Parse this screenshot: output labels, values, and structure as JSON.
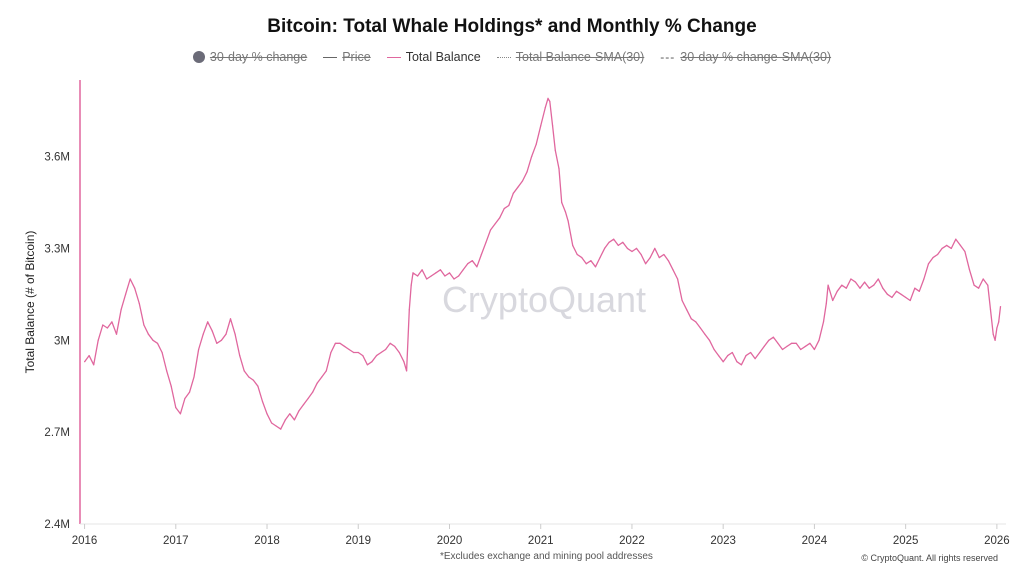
{
  "chart_data": {
    "type": "line",
    "title": "Bitcoin: Total Whale Holdings* and Monthly % Change",
    "ylabel": "Total Balance (# of Bitcoin)",
    "xlabel": "",
    "xlim": [
      2015.95,
      2026.1
    ],
    "ylim": [
      2400000,
      3850000
    ],
    "yticks": [
      {
        "value": 2400000,
        "label": "2.4M"
      },
      {
        "value": 2700000,
        "label": "2.7M"
      },
      {
        "value": 3000000,
        "label": "3M"
      },
      {
        "value": 3300000,
        "label": "3.3M"
      },
      {
        "value": 3600000,
        "label": "3.6M"
      }
    ],
    "xticks": [
      {
        "value": 2016,
        "label": "2016"
      },
      {
        "value": 2017,
        "label": "2017"
      },
      {
        "value": 2018,
        "label": "2018"
      },
      {
        "value": 2019,
        "label": "2019"
      },
      {
        "value": 2020,
        "label": "2020"
      },
      {
        "value": 2021,
        "label": "2021"
      },
      {
        "value": 2022,
        "label": "2022"
      },
      {
        "value": 2023,
        "label": "2023"
      },
      {
        "value": 2024,
        "label": "2024"
      },
      {
        "value": 2025,
        "label": "2025"
      },
      {
        "value": 2026,
        "label": "2026"
      }
    ],
    "legend": [
      {
        "label": "30-day % change",
        "style": "dot",
        "active": false
      },
      {
        "label": "Price",
        "style": "line",
        "active": false
      },
      {
        "label": "Total Balance",
        "style": "line-pink",
        "active": true
      },
      {
        "label": "Total Balance-SMA(30)",
        "style": "dotted",
        "active": false
      },
      {
        "label": "30-day % change-SMA(30)",
        "style": "dashed",
        "active": false
      }
    ],
    "series": [
      {
        "name": "Total Balance",
        "color": "#e0679e",
        "points": [
          [
            2016.0,
            2930000
          ],
          [
            2016.05,
            2950000
          ],
          [
            2016.1,
            2920000
          ],
          [
            2016.15,
            3000000
          ],
          [
            2016.2,
            3050000
          ],
          [
            2016.25,
            3040000
          ],
          [
            2016.3,
            3060000
          ],
          [
            2016.35,
            3020000
          ],
          [
            2016.4,
            3100000
          ],
          [
            2016.45,
            3150000
          ],
          [
            2016.5,
            3200000
          ],
          [
            2016.55,
            3170000
          ],
          [
            2016.6,
            3120000
          ],
          [
            2016.65,
            3050000
          ],
          [
            2016.7,
            3020000
          ],
          [
            2016.75,
            3000000
          ],
          [
            2016.8,
            2990000
          ],
          [
            2016.85,
            2960000
          ],
          [
            2016.9,
            2900000
          ],
          [
            2016.95,
            2850000
          ],
          [
            2017.0,
            2780000
          ],
          [
            2017.05,
            2760000
          ],
          [
            2017.1,
            2810000
          ],
          [
            2017.15,
            2830000
          ],
          [
            2017.2,
            2880000
          ],
          [
            2017.25,
            2970000
          ],
          [
            2017.3,
            3020000
          ],
          [
            2017.35,
            3060000
          ],
          [
            2017.4,
            3030000
          ],
          [
            2017.45,
            2990000
          ],
          [
            2017.5,
            3000000
          ],
          [
            2017.55,
            3020000
          ],
          [
            2017.6,
            3070000
          ],
          [
            2017.65,
            3020000
          ],
          [
            2017.7,
            2950000
          ],
          [
            2017.75,
            2900000
          ],
          [
            2017.8,
            2880000
          ],
          [
            2017.85,
            2870000
          ],
          [
            2017.9,
            2850000
          ],
          [
            2017.95,
            2800000
          ],
          [
            2018.0,
            2760000
          ],
          [
            2018.05,
            2730000
          ],
          [
            2018.1,
            2720000
          ],
          [
            2018.15,
            2710000
          ],
          [
            2018.2,
            2740000
          ],
          [
            2018.25,
            2760000
          ],
          [
            2018.3,
            2740000
          ],
          [
            2018.35,
            2770000
          ],
          [
            2018.4,
            2790000
          ],
          [
            2018.45,
            2810000
          ],
          [
            2018.5,
            2830000
          ],
          [
            2018.55,
            2860000
          ],
          [
            2018.6,
            2880000
          ],
          [
            2018.65,
            2900000
          ],
          [
            2018.7,
            2960000
          ],
          [
            2018.75,
            2990000
          ],
          [
            2018.8,
            2990000
          ],
          [
            2018.85,
            2980000
          ],
          [
            2018.9,
            2970000
          ],
          [
            2018.95,
            2960000
          ],
          [
            2019.0,
            2960000
          ],
          [
            2019.05,
            2950000
          ],
          [
            2019.1,
            2920000
          ],
          [
            2019.15,
            2930000
          ],
          [
            2019.2,
            2950000
          ],
          [
            2019.25,
            2960000
          ],
          [
            2019.3,
            2970000
          ],
          [
            2019.35,
            2990000
          ],
          [
            2019.4,
            2980000
          ],
          [
            2019.45,
            2960000
          ],
          [
            2019.5,
            2930000
          ],
          [
            2019.53,
            2900000
          ],
          [
            2019.56,
            3100000
          ],
          [
            2019.58,
            3180000
          ],
          [
            2019.6,
            3220000
          ],
          [
            2019.65,
            3210000
          ],
          [
            2019.7,
            3230000
          ],
          [
            2019.75,
            3200000
          ],
          [
            2019.8,
            3210000
          ],
          [
            2019.85,
            3220000
          ],
          [
            2019.9,
            3230000
          ],
          [
            2019.95,
            3210000
          ],
          [
            2020.0,
            3220000
          ],
          [
            2020.05,
            3200000
          ],
          [
            2020.1,
            3210000
          ],
          [
            2020.15,
            3230000
          ],
          [
            2020.2,
            3250000
          ],
          [
            2020.25,
            3260000
          ],
          [
            2020.3,
            3240000
          ],
          [
            2020.35,
            3280000
          ],
          [
            2020.4,
            3320000
          ],
          [
            2020.45,
            3360000
          ],
          [
            2020.5,
            3380000
          ],
          [
            2020.55,
            3400000
          ],
          [
            2020.6,
            3430000
          ],
          [
            2020.65,
            3440000
          ],
          [
            2020.7,
            3480000
          ],
          [
            2020.75,
            3500000
          ],
          [
            2020.8,
            3520000
          ],
          [
            2020.85,
            3550000
          ],
          [
            2020.9,
            3600000
          ],
          [
            2020.95,
            3640000
          ],
          [
            2021.0,
            3700000
          ],
          [
            2021.05,
            3760000
          ],
          [
            2021.08,
            3790000
          ],
          [
            2021.1,
            3780000
          ],
          [
            2021.13,
            3700000
          ],
          [
            2021.16,
            3620000
          ],
          [
            2021.2,
            3560000
          ],
          [
            2021.23,
            3450000
          ],
          [
            2021.27,
            3420000
          ],
          [
            2021.3,
            3390000
          ],
          [
            2021.35,
            3310000
          ],
          [
            2021.4,
            3280000
          ],
          [
            2021.45,
            3270000
          ],
          [
            2021.5,
            3250000
          ],
          [
            2021.55,
            3260000
          ],
          [
            2021.6,
            3240000
          ],
          [
            2021.65,
            3270000
          ],
          [
            2021.7,
            3300000
          ],
          [
            2021.75,
            3320000
          ],
          [
            2021.8,
            3330000
          ],
          [
            2021.85,
            3310000
          ],
          [
            2021.9,
            3320000
          ],
          [
            2021.95,
            3300000
          ],
          [
            2022.0,
            3290000
          ],
          [
            2022.05,
            3300000
          ],
          [
            2022.1,
            3280000
          ],
          [
            2022.15,
            3250000
          ],
          [
            2022.2,
            3270000
          ],
          [
            2022.25,
            3300000
          ],
          [
            2022.3,
            3270000
          ],
          [
            2022.35,
            3280000
          ],
          [
            2022.4,
            3260000
          ],
          [
            2022.45,
            3230000
          ],
          [
            2022.5,
            3200000
          ],
          [
            2022.55,
            3130000
          ],
          [
            2022.6,
            3100000
          ],
          [
            2022.65,
            3070000
          ],
          [
            2022.7,
            3060000
          ],
          [
            2022.75,
            3040000
          ],
          [
            2022.8,
            3020000
          ],
          [
            2022.85,
            3000000
          ],
          [
            2022.9,
            2970000
          ],
          [
            2022.95,
            2950000
          ],
          [
            2023.0,
            2930000
          ],
          [
            2023.05,
            2950000
          ],
          [
            2023.1,
            2960000
          ],
          [
            2023.15,
            2930000
          ],
          [
            2023.2,
            2920000
          ],
          [
            2023.25,
            2950000
          ],
          [
            2023.3,
            2960000
          ],
          [
            2023.35,
            2940000
          ],
          [
            2023.4,
            2960000
          ],
          [
            2023.45,
            2980000
          ],
          [
            2023.5,
            3000000
          ],
          [
            2023.55,
            3010000
          ],
          [
            2023.6,
            2990000
          ],
          [
            2023.65,
            2970000
          ],
          [
            2023.7,
            2980000
          ],
          [
            2023.75,
            2990000
          ],
          [
            2023.8,
            2990000
          ],
          [
            2023.85,
            2970000
          ],
          [
            2023.9,
            2980000
          ],
          [
            2023.95,
            2990000
          ],
          [
            2024.0,
            2970000
          ],
          [
            2024.05,
            3000000
          ],
          [
            2024.1,
            3060000
          ],
          [
            2024.13,
            3120000
          ],
          [
            2024.15,
            3180000
          ],
          [
            2024.2,
            3130000
          ],
          [
            2024.25,
            3160000
          ],
          [
            2024.3,
            3180000
          ],
          [
            2024.35,
            3170000
          ],
          [
            2024.4,
            3200000
          ],
          [
            2024.45,
            3190000
          ],
          [
            2024.5,
            3170000
          ],
          [
            2024.55,
            3190000
          ],
          [
            2024.6,
            3170000
          ],
          [
            2024.65,
            3180000
          ],
          [
            2024.7,
            3200000
          ],
          [
            2024.75,
            3170000
          ],
          [
            2024.8,
            3150000
          ],
          [
            2024.85,
            3140000
          ],
          [
            2024.9,
            3160000
          ],
          [
            2024.95,
            3150000
          ],
          [
            2025.0,
            3140000
          ],
          [
            2025.05,
            3130000
          ],
          [
            2025.1,
            3170000
          ],
          [
            2025.15,
            3160000
          ],
          [
            2025.2,
            3200000
          ],
          [
            2025.25,
            3250000
          ],
          [
            2025.3,
            3270000
          ],
          [
            2025.35,
            3280000
          ],
          [
            2025.4,
            3300000
          ],
          [
            2025.45,
            3310000
          ],
          [
            2025.5,
            3300000
          ],
          [
            2025.55,
            3330000
          ],
          [
            2025.6,
            3310000
          ],
          [
            2025.65,
            3290000
          ],
          [
            2025.7,
            3230000
          ],
          [
            2025.75,
            3180000
          ],
          [
            2025.8,
            3170000
          ],
          [
            2025.85,
            3200000
          ],
          [
            2025.9,
            3180000
          ],
          [
            2025.93,
            3100000
          ],
          [
            2025.96,
            3020000
          ],
          [
            2025.98,
            3000000
          ],
          [
            2026.0,
            3040000
          ],
          [
            2026.02,
            3060000
          ],
          [
            2026.04,
            3110000
          ]
        ]
      }
    ],
    "annotations": {
      "watermark": "CryptoQuant",
      "footnote": "*Excludes exchange and mining pool addresses",
      "copyright": "© CryptoQuant. All rights reserved"
    }
  }
}
